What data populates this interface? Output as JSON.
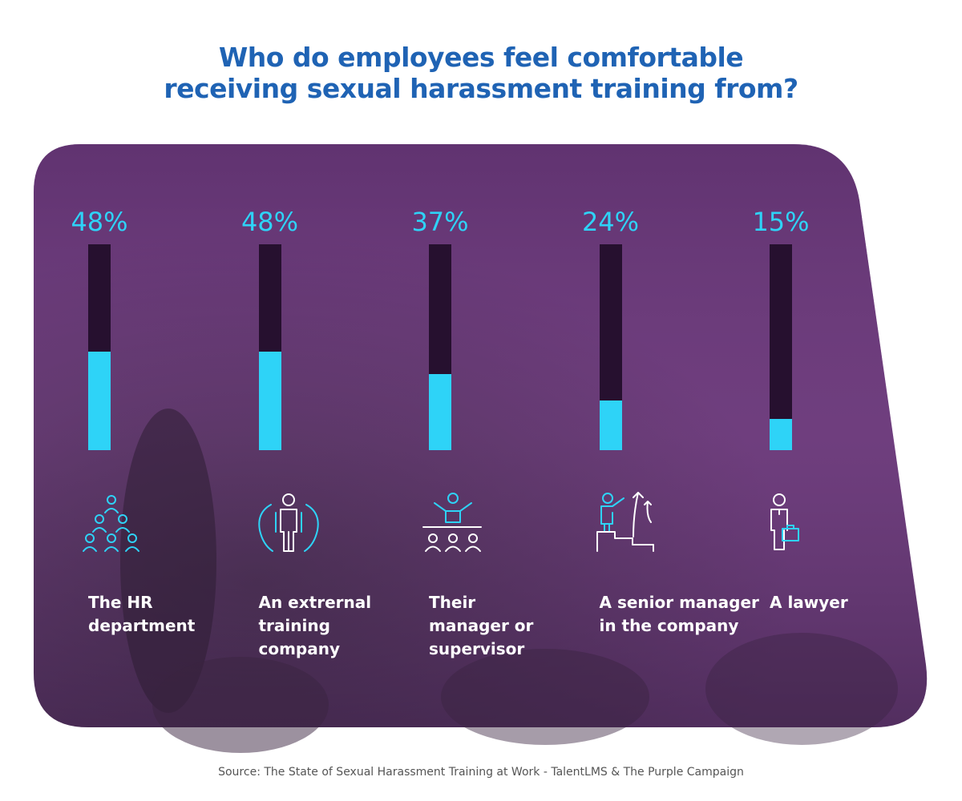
{
  "chart_data": {
    "type": "bar",
    "title": "Who do employees feel comfortable receiving sexual harassment training from?",
    "categories": [
      "The HR department",
      "An extrernal training company",
      "Their manager or supervisor",
      "A senior manager in the company",
      "A lawyer"
    ],
    "values": [
      48,
      48,
      37,
      24,
      15
    ],
    "value_labels": [
      "48%",
      "48%",
      "37%",
      "24%",
      "15%"
    ],
    "color": "#2ed3f7",
    "ylim": [
      0,
      100
    ],
    "source": "Source: The State of Sexual Harassment Training at Work - TalentLMS & The Purple Campaign"
  }
}
